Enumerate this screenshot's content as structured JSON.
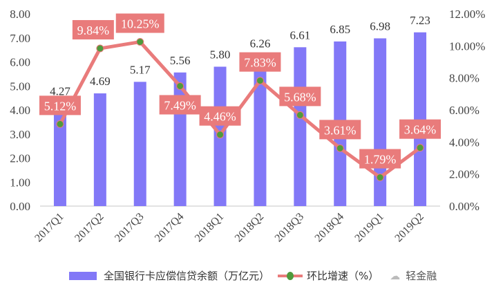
{
  "chart_data": {
    "type": "bar+line",
    "categories": [
      "2017Q1",
      "2017Q2",
      "2017Q3",
      "2017Q4",
      "2018Q1",
      "2018Q2",
      "2018Q3",
      "2018Q4",
      "2019Q1",
      "2019Q2"
    ],
    "series": [
      {
        "name": "全国银行卡应偿信贷余额（万亿元）",
        "type": "bar",
        "axis": "left",
        "color": "#8278f7",
        "values": [
          4.27,
          4.69,
          5.17,
          5.56,
          5.8,
          6.26,
          6.61,
          6.85,
          6.98,
          7.23
        ],
        "labels": [
          "4.27",
          "4.69",
          "5.17",
          "5.56",
          "5.80",
          "6.26",
          "6.61",
          "6.85",
          "6.98",
          "7.23"
        ]
      },
      {
        "name": "环比增速（%）",
        "type": "line",
        "axis": "right",
        "color": "#e97b7b",
        "marker_color": "#4f9a3c",
        "values": [
          5.12,
          9.84,
          10.25,
          7.49,
          4.46,
          7.83,
          5.68,
          3.61,
          1.79,
          3.64
        ],
        "labels": [
          "5.12%",
          "9.84%",
          "10.25%",
          "7.49%",
          "4.46%",
          "7.83%",
          "5.68%",
          "3.61%",
          "1.79%",
          "3.64%"
        ]
      }
    ],
    "y_left": {
      "range": [
        0,
        8
      ],
      "ticks": [
        "0.00",
        "1.00",
        "2.00",
        "3.00",
        "4.00",
        "5.00",
        "6.00",
        "7.00",
        "8.00"
      ]
    },
    "y_right": {
      "range": [
        0,
        12
      ],
      "ticks": [
        "0.00%",
        "2.00%",
        "4.00%",
        "6.00%",
        "8.00%",
        "10.00%",
        "12.00%"
      ]
    },
    "grid": false,
    "legend": "bottom"
  },
  "watermark": "轻金融"
}
